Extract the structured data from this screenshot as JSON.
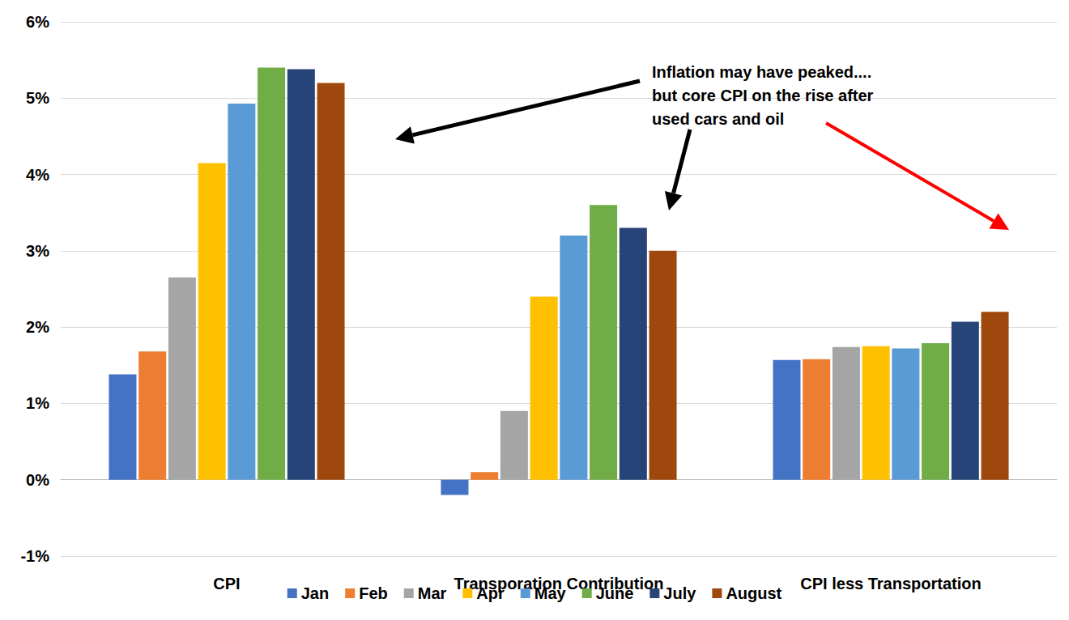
{
  "chart_data": {
    "type": "bar",
    "categories": [
      "CPI",
      "Transporation Contribution",
      "CPI less Transportation"
    ],
    "series": [
      {
        "name": "Jan",
        "color": "#4472c4",
        "values": [
          1.38,
          -0.2,
          1.57
        ]
      },
      {
        "name": "Feb",
        "color": "#ed7d31",
        "values": [
          1.68,
          0.1,
          1.58
        ]
      },
      {
        "name": "Mar",
        "color": "#a5a5a5",
        "values": [
          2.65,
          0.9,
          1.74
        ]
      },
      {
        "name": "Apr",
        "color": "#ffc000",
        "values": [
          4.15,
          2.4,
          1.75
        ]
      },
      {
        "name": "May",
        "color": "#5b9bd5",
        "values": [
          4.93,
          3.2,
          1.72
        ]
      },
      {
        "name": "June",
        "color": "#70ad47",
        "values": [
          5.4,
          3.6,
          1.79
        ]
      },
      {
        "name": "July",
        "color": "#264478",
        "values": [
          5.38,
          3.3,
          2.07
        ]
      },
      {
        "name": "August",
        "color": "#9e480e",
        "values": [
          5.2,
          3.0,
          2.2
        ]
      }
    ],
    "ylim": [
      -1,
      6
    ],
    "yticks": [
      {
        "value": -1,
        "label": "-1%"
      },
      {
        "value": 0,
        "label": "0%"
      },
      {
        "value": 1,
        "label": "1%"
      },
      {
        "value": 2,
        "label": "2%"
      },
      {
        "value": 3,
        "label": "3%"
      },
      {
        "value": 4,
        "label": "4%"
      },
      {
        "value": 5,
        "label": "5%"
      },
      {
        "value": 6,
        "label": "6%"
      }
    ],
    "grid": true,
    "legend": "bottom",
    "annotations": [
      "Inflation may have peaked....",
      "but core CPI on the rise after",
      "used cars and oil"
    ]
  }
}
